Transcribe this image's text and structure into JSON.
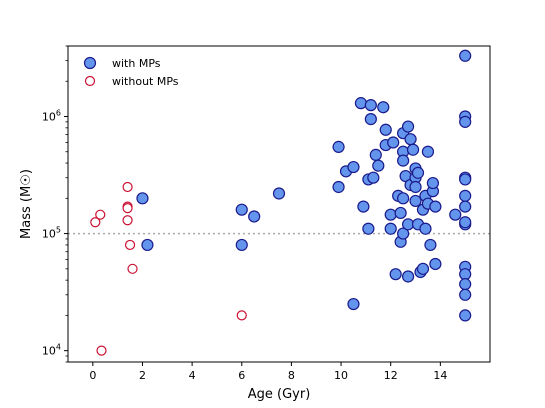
{
  "chart_data": {
    "type": "scatter",
    "title": "",
    "xlabel": "Age (Gyr)",
    "ylabel": "Mass (M☉)",
    "xlim": [
      -1,
      16
    ],
    "ylim": [
      8000,
      4000000
    ],
    "yscale": "log",
    "x_ticks": [
      0,
      2,
      4,
      6,
      8,
      10,
      12,
      14
    ],
    "y_ticks": [
      {
        "value": 10000,
        "base": "10",
        "exp": "4"
      },
      {
        "value": 100000,
        "base": "10",
        "exp": "5"
      },
      {
        "value": 1000000,
        "base": "10",
        "exp": "6"
      }
    ],
    "reference_line": {
      "y": 100000,
      "style": "dotted",
      "color": "#aaaaaa"
    },
    "legend": {
      "placement": "top-left"
    },
    "series": [
      {
        "name": "with MPs",
        "marker": "filled-circle",
        "fill": "#6495ed",
        "edge": "#1a1a8c",
        "points": [
          [
            2.0,
            200000
          ],
          [
            2.2,
            80000
          ],
          [
            6.0,
            160000
          ],
          [
            6.0,
            80000
          ],
          [
            6.5,
            140000
          ],
          [
            7.5,
            220000
          ],
          [
            9.9,
            550000
          ],
          [
            9.9,
            250000
          ],
          [
            10.2,
            340000
          ],
          [
            10.5,
            25000
          ],
          [
            10.5,
            370000
          ],
          [
            10.8,
            1300000
          ],
          [
            10.9,
            170000
          ],
          [
            11.1,
            290000
          ],
          [
            11.1,
            110000
          ],
          [
            11.2,
            1250000
          ],
          [
            11.2,
            950000
          ],
          [
            11.3,
            300000
          ],
          [
            11.4,
            470000
          ],
          [
            11.5,
            380000
          ],
          [
            11.7,
            1200000
          ],
          [
            11.8,
            770000
          ],
          [
            11.8,
            570000
          ],
          [
            12.0,
            145000
          ],
          [
            12.0,
            110000
          ],
          [
            12.1,
            600000
          ],
          [
            12.2,
            45000
          ],
          [
            12.3,
            210000
          ],
          [
            12.4,
            150000
          ],
          [
            12.4,
            85000
          ],
          [
            12.5,
            200000
          ],
          [
            12.5,
            720000
          ],
          [
            12.5,
            500000
          ],
          [
            12.5,
            420000
          ],
          [
            12.5,
            100000
          ],
          [
            12.6,
            310000
          ],
          [
            12.7,
            820000
          ],
          [
            12.7,
            43000
          ],
          [
            12.7,
            120000
          ],
          [
            12.8,
            640000
          ],
          [
            12.8,
            260000
          ],
          [
            12.9,
            520000
          ],
          [
            13.0,
            360000
          ],
          [
            13.0,
            300000
          ],
          [
            13.0,
            250000
          ],
          [
            13.0,
            190000
          ],
          [
            13.1,
            120000
          ],
          [
            13.1,
            330000
          ],
          [
            13.2,
            47000
          ],
          [
            13.3,
            50000
          ],
          [
            13.3,
            160000
          ],
          [
            13.4,
            110000
          ],
          [
            13.4,
            210000
          ],
          [
            13.5,
            180000
          ],
          [
            13.5,
            500000
          ],
          [
            13.6,
            80000
          ],
          [
            13.7,
            230000
          ],
          [
            13.7,
            270000
          ],
          [
            13.8,
            170000
          ],
          [
            13.8,
            55000
          ],
          [
            14.6,
            145000
          ],
          [
            15.0,
            3300000
          ],
          [
            15.0,
            1000000
          ],
          [
            15.0,
            900000
          ],
          [
            15.0,
            300000
          ],
          [
            15.0,
            290000
          ],
          [
            15.0,
            210000
          ],
          [
            15.0,
            170000
          ],
          [
            15.0,
            120000
          ],
          [
            15.0,
            125000
          ],
          [
            15.0,
            52000
          ],
          [
            15.0,
            45000
          ],
          [
            15.0,
            37000
          ],
          [
            15.0,
            30000
          ],
          [
            15.0,
            20000
          ]
        ]
      },
      {
        "name": "without MPs",
        "marker": "open-circle",
        "fill": "#ffffff",
        "edge": "#cc1133",
        "points": [
          [
            0.1,
            125000
          ],
          [
            0.3,
            145000
          ],
          [
            0.35,
            10000
          ],
          [
            1.4,
            250000
          ],
          [
            1.4,
            170000
          ],
          [
            1.4,
            165000
          ],
          [
            1.4,
            130000
          ],
          [
            1.5,
            80000
          ],
          [
            1.6,
            50000
          ],
          [
            6.0,
            20000
          ]
        ]
      }
    ]
  }
}
